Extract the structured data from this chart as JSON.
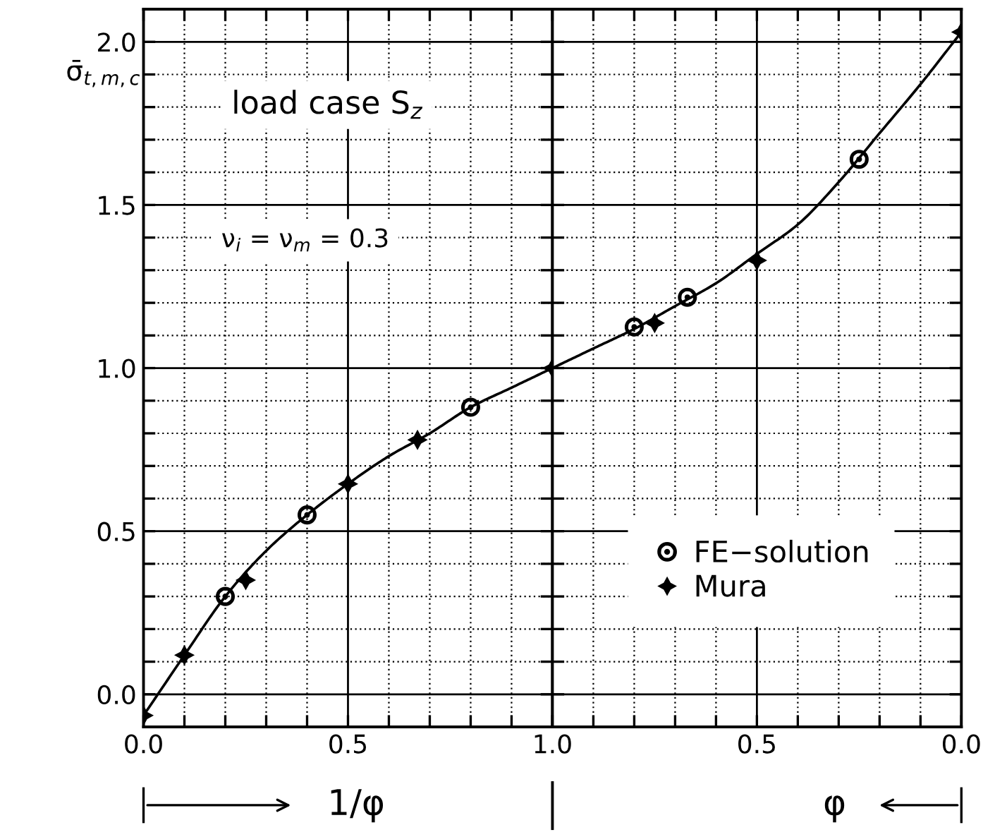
{
  "chart_data": [
    {
      "type": "line",
      "xlabel": "1/φ",
      "ylabel": "σ̄$_{t,m,c}$",
      "annotations": [
        "load case S$_{z}$",
        "ν$_{i}$ = ν$_{m}$ = 0.3"
      ],
      "series": [
        {
          "color": "#000000",
          "marker": "none",
          "line_style": "solid",
          "x": [
            0,
            0.1,
            0.2,
            0.3,
            0.4,
            0.5,
            0.6,
            0.7,
            0.8,
            0.9,
            1.0
          ],
          "values": [
            -0.065,
            0.12,
            0.3,
            0.44,
            0.55,
            0.645,
            0.73,
            0.8,
            0.88,
            0.94,
            1.0
          ]
        },
        {
          "type": "scatter",
          "color": "#000000",
          "marker": "circle",
          "x": [
            0.2,
            0.4,
            0.8
          ],
          "values": [
            0.3,
            0.55,
            0.88
          ]
        },
        {
          "type": "scatter",
          "color": "#000000",
          "marker": "star",
          "x": [
            0,
            0.1,
            0.25,
            0.5,
            0.67,
            1.0
          ],
          "values": [
            -0.065,
            0.12,
            0.35,
            0.645,
            0.78,
            1.0
          ]
        }
      ],
      "xlim": [
        0,
        1
      ],
      "ylim": [
        -0.1,
        2.1
      ],
      "xticks": [
        {
          "value": 0,
          "label": "0.0"
        },
        {
          "value": 0.1,
          "label": null
        },
        {
          "value": 0.2,
          "label": null
        },
        {
          "value": 0.3,
          "label": null
        },
        {
          "value": 0.4,
          "label": null
        },
        {
          "value": 0.5,
          "label": "0.5"
        },
        {
          "value": 0.6,
          "label": null
        },
        {
          "value": 0.7,
          "label": null
        },
        {
          "value": 0.8,
          "label": null
        },
        {
          "value": 0.9,
          "label": null
        },
        {
          "value": 1,
          "label": "1.0"
        }
      ],
      "yticks": [
        {
          "value": 0,
          "label": "0.0"
        },
        {
          "value": 0.1,
          "label": null
        },
        {
          "value": 0.2,
          "label": null
        },
        {
          "value": 0.3,
          "label": null
        },
        {
          "value": 0.4,
          "label": null
        },
        {
          "value": 0.5,
          "label": "0.5"
        },
        {
          "value": 0.6,
          "label": null
        },
        {
          "value": 0.7,
          "label": null
        },
        {
          "value": 0.8,
          "label": null
        },
        {
          "value": 0.9,
          "label": null
        },
        {
          "value": 1,
          "label": "1.0"
        },
        {
          "value": 1.1,
          "label": null
        },
        {
          "value": 1.2,
          "label": null
        },
        {
          "value": 1.3,
          "label": null
        },
        {
          "value": 1.4,
          "label": null
        },
        {
          "value": 1.5,
          "label": "1.5"
        },
        {
          "value": 1.6,
          "label": null
        },
        {
          "value": 1.7,
          "label": null
        },
        {
          "value": 1.8,
          "label": null
        },
        {
          "value": 1.9,
          "label": null
        },
        {
          "value": 2,
          "label": "2.0"
        }
      ],
      "grid": true
    },
    {
      "type": "line",
      "xlabel": "φ",
      "series": [
        {
          "color": "#000000",
          "marker": "none",
          "line_style": "solid",
          "x": [
            1.0,
            0.9,
            0.8,
            0.7,
            0.6,
            0.5,
            0.4,
            0.3,
            0.2,
            0.1,
            0.0
          ],
          "values": [
            1.0,
            1.06,
            1.12,
            1.19,
            1.26,
            1.35,
            1.44,
            1.57,
            1.72,
            1.87,
            2.03
          ]
        },
        {
          "type": "scatter",
          "name": "FE−solution",
          "color": "#000000",
          "marker": "circle",
          "x": [
            0.8,
            0.67,
            0.25
          ],
          "values": [
            1.126,
            1.217,
            1.64
          ]
        },
        {
          "type": "scatter",
          "name": "Mura",
          "color": "#000000",
          "marker": "star",
          "x": [
            0.75,
            0.5,
            0.0
          ],
          "values": [
            1.138,
            1.33,
            2.03
          ]
        }
      ],
      "xlim": [
        1,
        0
      ],
      "ylim": [
        -0.1,
        2.1
      ],
      "xticks": [
        {
          "value": 1.0,
          "label": null
        },
        {
          "value": 0.9,
          "label": null
        },
        {
          "value": 0.8,
          "label": null
        },
        {
          "value": 0.7,
          "label": null
        },
        {
          "value": 0.6,
          "label": null
        },
        0.5,
        {
          "value": 0.4,
          "label": null
        },
        {
          "value": 0.3,
          "label": null
        },
        {
          "value": 0.2,
          "label": null
        },
        {
          "value": 0.1,
          "label": null
        },
        {
          "value": 0,
          "label": "0.0"
        }
      ],
      "yticks": [
        {
          "value": 0,
          "label": null
        },
        {
          "value": 0.1,
          "label": null
        },
        {
          "value": 0.2,
          "label": null
        },
        {
          "value": 0.3,
          "label": null
        },
        {
          "value": 0.4,
          "label": null
        },
        {
          "value": 0.5,
          "label": null
        },
        {
          "value": 0.6,
          "label": null
        },
        {
          "value": 0.7,
          "label": null
        },
        {
          "value": 0.8,
          "label": null
        },
        {
          "value": 0.9,
          "label": null
        },
        {
          "value": 1,
          "label": null
        },
        {
          "value": 1.1,
          "label": null
        },
        {
          "value": 1.2,
          "label": null
        },
        {
          "value": 1.3,
          "label": null
        },
        {
          "value": 1.4,
          "label": null
        },
        {
          "value": 1.5,
          "label": null
        },
        {
          "value": 1.6,
          "label": null
        },
        {
          "value": 1.7,
          "label": null
        },
        {
          "value": 1.8,
          "label": null
        },
        {
          "value": 1.9,
          "label": null
        },
        {
          "value": 2,
          "label": null
        }
      ],
      "tick_labels": "x",
      "grid": true,
      "legend": "bottom right"
    }
  ]
}
